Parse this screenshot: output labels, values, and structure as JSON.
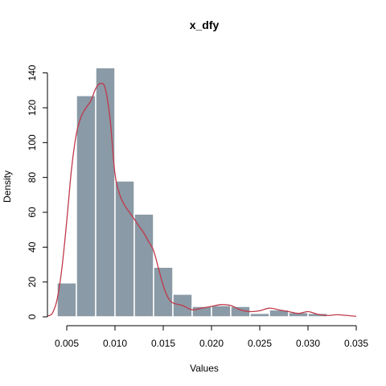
{
  "chart_data": {
    "type": "bar",
    "title": "x_dfy",
    "xlabel": "Values",
    "ylabel": "Density",
    "xlim": [
      0.003,
      0.0355
    ],
    "ylim": [
      0,
      150
    ],
    "bins": [
      {
        "x0": 0.004,
        "x1": 0.006,
        "value": 19.5
      },
      {
        "x0": 0.006,
        "x1": 0.008,
        "value": 127
      },
      {
        "x0": 0.008,
        "x1": 0.01,
        "value": 143
      },
      {
        "x0": 0.01,
        "x1": 0.012,
        "value": 78
      },
      {
        "x0": 0.012,
        "x1": 0.014,
        "value": 59
      },
      {
        "x0": 0.014,
        "x1": 0.016,
        "value": 28.5
      },
      {
        "x0": 0.016,
        "x1": 0.018,
        "value": 13
      },
      {
        "x0": 0.018,
        "x1": 0.02,
        "value": 6
      },
      {
        "x0": 0.02,
        "x1": 0.022,
        "value": 6.5
      },
      {
        "x0": 0.022,
        "x1": 0.024,
        "value": 6
      },
      {
        "x0": 0.024,
        "x1": 0.026,
        "value": 2
      },
      {
        "x0": 0.026,
        "x1": 0.028,
        "value": 4
      },
      {
        "x0": 0.028,
        "x1": 0.03,
        "value": 2.5
      },
      {
        "x0": 0.03,
        "x1": 0.032,
        "value": 2
      },
      {
        "x0": 0.032,
        "x1": 0.034,
        "value": 0
      }
    ],
    "density_curve": {
      "x": [
        0.003,
        0.0035,
        0.004,
        0.0045,
        0.005,
        0.0055,
        0.006,
        0.0065,
        0.007,
        0.0075,
        0.008,
        0.0085,
        0.009,
        0.0095,
        0.01,
        0.0105,
        0.011,
        0.0115,
        0.012,
        0.0125,
        0.013,
        0.0135,
        0.014,
        0.0145,
        0.015,
        0.0155,
        0.016,
        0.017,
        0.018,
        0.019,
        0.02,
        0.021,
        0.022,
        0.023,
        0.024,
        0.025,
        0.026,
        0.027,
        0.028,
        0.029,
        0.03,
        0.031,
        0.032,
        0.033,
        0.034,
        0.035
      ],
      "y": [
        0.5,
        2,
        10,
        28,
        55,
        85,
        105,
        115,
        120,
        124,
        131,
        134,
        131,
        113,
        82,
        70,
        64,
        60,
        56,
        52,
        48,
        43,
        38,
        28,
        18,
        11,
        8,
        6.5,
        4,
        5,
        6,
        7,
        6.5,
        4,
        3,
        3.5,
        5,
        4,
        3,
        2,
        3,
        1.5,
        0.8,
        1.2,
        0.8,
        0.3
      ]
    },
    "x_ticks": [
      0.005,
      0.01,
      0.015,
      0.02,
      0.025,
      0.03,
      0.035
    ],
    "x_tick_labels": [
      "0.005",
      "0.010",
      "0.015",
      "0.020",
      "0.025",
      "0.030",
      "0.035"
    ],
    "y_ticks": [
      0,
      20,
      40,
      60,
      80,
      100,
      120,
      140
    ],
    "y_tick_labels": [
      "0",
      "20",
      "40",
      "60",
      "80",
      "100",
      "120",
      "140"
    ],
    "grid": false,
    "bar_color": "#8a9aa6",
    "bar_edge_color": "#ffffff",
    "curve_color": "#c0394b"
  }
}
